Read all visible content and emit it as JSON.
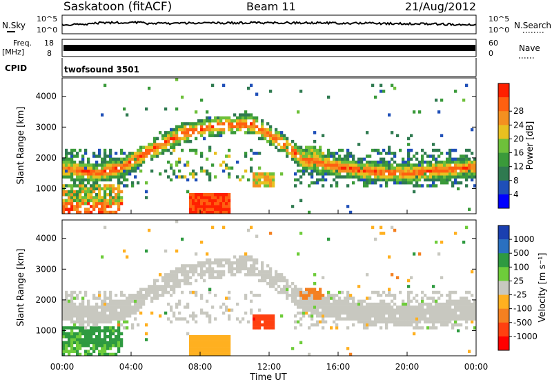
{
  "header": {
    "title": "Saskatoon (fitACF)",
    "beam": "Beam 11",
    "date": "21/Aug/2012"
  },
  "strips": {
    "nsky_label": "N.Sky",
    "nsearch_label": "N.Search",
    "noise_ticks": [
      "10^5",
      "10^0"
    ],
    "freq_label_top": "Freq.",
    "freq_label_unit": "[MHz]",
    "freq_ticks": [
      "18",
      "8"
    ],
    "nave_ticks": [
      "60",
      "0"
    ],
    "nave_label": "Nave",
    "cpid_label": "CPID",
    "cpid_value": "twofsound 3501"
  },
  "chart_data": [
    {
      "type": "heatmap",
      "name": "power",
      "ylabel": "Slant Range [km]",
      "ylim": [
        180,
        4600
      ],
      "yticks": [
        1000,
        2000,
        3000,
        4000
      ],
      "xlim": [
        0,
        24
      ],
      "xticks": [
        "00:00",
        "04:00",
        "08:00",
        "12:00",
        "16:00",
        "20:00",
        "00:00"
      ],
      "colorbar": {
        "label": "Power [dB]",
        "ticks": [
          "4",
          "8",
          "12",
          "16",
          "20",
          "24",
          "28"
        ],
        "colors": [
          "#0000ff",
          "#1f4fb8",
          "#2f7a50",
          "#3a9a3a",
          "#6ec03a",
          "#e8c020",
          "#f49020",
          "#ff6010",
          "#ff2000"
        ]
      },
      "band": [
        {
          "t": 0.0,
          "r": 1650
        },
        {
          "t": 2.0,
          "r": 1500
        },
        {
          "t": 3.5,
          "r": 1700
        },
        {
          "t": 5.0,
          "r": 2200
        },
        {
          "t": 7.0,
          "r": 2800
        },
        {
          "t": 9.0,
          "r": 3050
        },
        {
          "t": 11.0,
          "r": 3100
        },
        {
          "t": 12.5,
          "r": 2600
        },
        {
          "t": 14.0,
          "r": 1950
        },
        {
          "t": 16.0,
          "r": 1700
        },
        {
          "t": 18.0,
          "r": 1550
        },
        {
          "t": 20.0,
          "r": 1500
        },
        {
          "t": 22.0,
          "r": 1600
        },
        {
          "t": 24.0,
          "r": 1700
        }
      ],
      "hot_patch": {
        "t0": 7.3,
        "t1": 9.8,
        "r0": 200,
        "r1": 900
      }
    },
    {
      "type": "heatmap",
      "name": "velocity",
      "ylabel": "Slant Range [km]",
      "xlabel": "Time UT",
      "ylim": [
        180,
        4600
      ],
      "yticks": [
        1000,
        2000,
        3000,
        4000
      ],
      "xlim": [
        0,
        24
      ],
      "xticks": [
        "00:00",
        "04:00",
        "08:00",
        "12:00",
        "16:00",
        "20:00",
        "00:00"
      ],
      "colorbar": {
        "label": "Velocity [m s⁻¹]",
        "ticks": [
          "1000",
          "500",
          "100",
          "25",
          "-25",
          "-100",
          "-500",
          "-1000"
        ],
        "colors": [
          "#1a3fb0",
          "#2a70c0",
          "#2e9a40",
          "#6ecc3a",
          "#c8c8c0",
          "#ffb020",
          "#f48020",
          "#ff4010",
          "#ff0000"
        ]
      }
    }
  ]
}
